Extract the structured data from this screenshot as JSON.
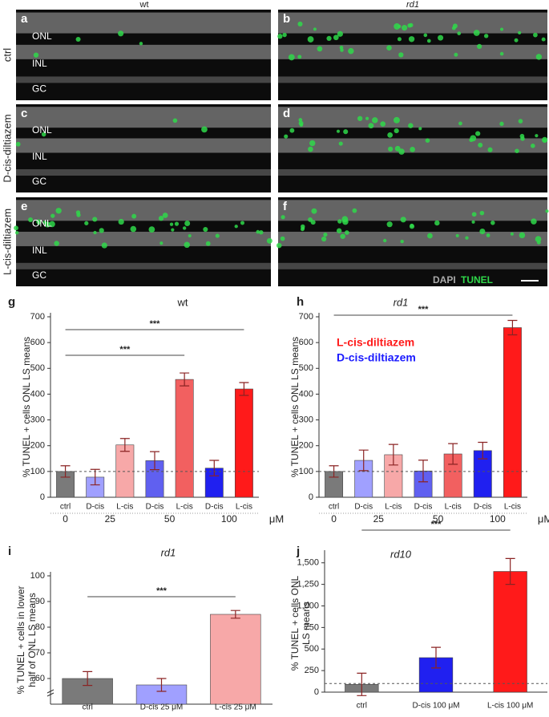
{
  "micrographs": {
    "columns": [
      "wt",
      "rd1"
    ],
    "rows": [
      "ctrl",
      "D-cis-diltiazem",
      "L-cis-diltiazem"
    ],
    "panels": [
      "a",
      "b",
      "c",
      "d",
      "e",
      "f"
    ],
    "layers": [
      "ONL",
      "INL",
      "GC"
    ],
    "stain_labels": [
      "DAPI",
      "TUNEL"
    ]
  },
  "chart_data": [
    {
      "type": "bar",
      "panel": "g",
      "title": "wt",
      "ylabel": [
        "% TUNEL + cells ONL LS means"
      ],
      "categories": [
        "ctrl",
        "D-cis",
        "L-cis",
        "D-cis",
        "L-cis",
        "D-cis",
        "L-cis"
      ],
      "values": [
        100,
        78,
        203,
        142,
        457,
        113,
        420
      ],
      "errors": [
        22,
        30,
        25,
        35,
        25,
        30,
        25
      ],
      "colors": [
        "#7a7a7a",
        "#a0a0ff",
        "#f7a8a8",
        "#6060f0",
        "#f26060",
        "#2020f0",
        "#ff1a1a"
      ],
      "doses": [
        "0",
        "25",
        "50",
        "100"
      ],
      "dose_unit": "μM",
      "reference": 100,
      "significance": [
        {
          "from": 0,
          "to": 6,
          "label": "***"
        },
        {
          "from": 0,
          "to": 4,
          "label": "***"
        }
      ],
      "ylim": [
        0,
        700
      ],
      "yticks": [
        0,
        100,
        200,
        300,
        400,
        500,
        600,
        700
      ]
    },
    {
      "type": "bar",
      "panel": "h",
      "title": "rd1",
      "ylabel": [
        "% TUNEL + cells ONL LS means"
      ],
      "categories": [
        "ctrl",
        "D-cis",
        "L-cis",
        "D-cis",
        "L-cis",
        "D-cis",
        "L-cis"
      ],
      "values": [
        100,
        143,
        165,
        102,
        168,
        181,
        658
      ],
      "errors": [
        22,
        40,
        40,
        42,
        40,
        32,
        28
      ],
      "colors": [
        "#7a7a7a",
        "#a0a0ff",
        "#f7a8a8",
        "#6060f0",
        "#f26060",
        "#2020f0",
        "#ff1a1a"
      ],
      "doses": [
        "0",
        "25",
        "50",
        "100"
      ],
      "dose_unit": "μM",
      "reference": 100,
      "legend": [
        {
          "name": "L-cis-diltiazem",
          "color": "#ff1a1a"
        },
        {
          "name": "D-cis-diltiazem",
          "color": "#1a1aff"
        }
      ],
      "significance": [
        {
          "from": 0,
          "to": 6,
          "label": "***"
        }
      ],
      "ylim": [
        0,
        700
      ],
      "yticks": [
        0,
        100,
        200,
        300,
        400,
        500,
        600,
        700
      ]
    },
    {
      "type": "bar",
      "panel": "i",
      "title": "rd1",
      "ylabel": [
        "% TUNEL + cells in lower",
        "half of ONL LS means"
      ],
      "categories": [
        "ctrl",
        "D-cis 25 μM",
        "L-cis 25 μM"
      ],
      "values": [
        60,
        57.5,
        85
      ],
      "errors": [
        2.7,
        2.5,
        1.5
      ],
      "colors": [
        "#7a7a7a",
        "#a0a0ff",
        "#f7a8a8"
      ],
      "significance": [
        {
          "from": 0,
          "to": 2,
          "label": "***"
        }
      ],
      "ylim": [
        50,
        100
      ],
      "yticks": [
        60,
        70,
        80,
        90,
        100
      ]
    },
    {
      "type": "bar",
      "panel": "j",
      "title": "rd10",
      "ylabel": [
        "% TUNEL + cells ONL",
        "LS means"
      ],
      "categories": [
        "ctrl",
        "D-cis 100 μM",
        "L-cis 100 μM"
      ],
      "values": [
        90,
        400,
        1400
      ],
      "errors": [
        130,
        120,
        150
      ],
      "colors": [
        "#7a7a7a",
        "#2020f0",
        "#ff1a1a"
      ],
      "reference": 100,
      "significance": [
        {
          "from": 0,
          "to": 2,
          "label": "***"
        }
      ],
      "ylim": [
        0,
        1600
      ],
      "yticks": [
        0,
        250,
        500,
        750,
        {
          "value": 1000,
          "label": "1,000"
        },
        {
          "value": 1250,
          "label": "1,250"
        },
        {
          "value": 1500,
          "label": "1,500"
        }
      ]
    }
  ]
}
